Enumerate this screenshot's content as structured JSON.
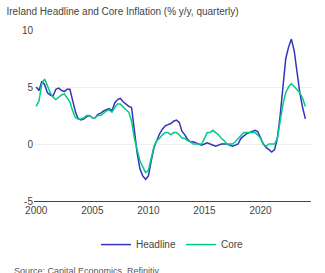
{
  "chart_data": {
    "type": "line",
    "title": "Ireland Headline and Core Inflation (% y/y, quarterly)",
    "annotations": [
      "Source: Capital Economics, Refinitiv"
    ],
    "x": [
      2000,
      2000.25,
      2000.5,
      2000.75,
      2001,
      2001.25,
      2001.5,
      2001.75,
      2002,
      2002.25,
      2002.5,
      2002.75,
      2003,
      2003.25,
      2003.5,
      2003.75,
      2004,
      2004.25,
      2004.5,
      2004.75,
      2005,
      2005.25,
      2005.5,
      2005.75,
      2006,
      2006.25,
      2006.5,
      2006.75,
      2007,
      2007.25,
      2007.5,
      2007.75,
      2008,
      2008.25,
      2008.5,
      2008.75,
      2009,
      2009.25,
      2009.5,
      2009.75,
      2010,
      2010.25,
      2010.5,
      2010.75,
      2011,
      2011.25,
      2011.5,
      2011.75,
      2012,
      2012.25,
      2012.5,
      2012.75,
      2013,
      2013.25,
      2013.5,
      2013.75,
      2014,
      2014.25,
      2014.5,
      2014.75,
      2015,
      2015.25,
      2015.5,
      2015.75,
      2016,
      2016.25,
      2016.5,
      2016.75,
      2017,
      2017.25,
      2017.5,
      2017.75,
      2018,
      2018.25,
      2018.5,
      2018.75,
      2019,
      2019.25,
      2019.5,
      2019.75,
      2020,
      2020.25,
      2020.5,
      2020.75,
      2021,
      2021.25,
      2021.5,
      2021.75,
      2022,
      2022.25,
      2022.5,
      2022.75,
      2023,
      2023.25,
      2023.5,
      2023.75,
      2024
    ],
    "series": [
      {
        "name": "Headline",
        "color": "#3333bb",
        "values": [
          5.0,
          4.7,
          5.5,
          5.2,
          4.5,
          4.3,
          4.2,
          4.8,
          4.9,
          4.7,
          4.6,
          4.8,
          4.8,
          3.8,
          2.8,
          2.2,
          2.1,
          2.2,
          2.4,
          2.5,
          2.3,
          2.3,
          2.6,
          2.7,
          2.9,
          3.0,
          3.1,
          2.9,
          3.6,
          3.9,
          4.0,
          3.7,
          3.5,
          3.3,
          3.2,
          1.2,
          -0.8,
          -2.2,
          -2.8,
          -3.1,
          -2.8,
          -1.5,
          -0.3,
          0.3,
          0.9,
          1.3,
          1.6,
          1.7,
          1.8,
          2.0,
          2.1,
          1.9,
          1.1,
          0.8,
          0.4,
          0.2,
          0.2,
          0.1,
          0.0,
          -0.1,
          0.0,
          0.1,
          0.0,
          -0.1,
          -0.2,
          -0.1,
          0.0,
          0.0,
          0.0,
          -0.1,
          -0.2,
          -0.1,
          0.0,
          0.5,
          0.7,
          0.9,
          1.0,
          1.1,
          1.2,
          1.1,
          0.5,
          0.0,
          -0.3,
          -0.5,
          -0.7,
          -0.5,
          0.5,
          2.5,
          5.0,
          7.5,
          8.5,
          9.2,
          8.2,
          6.2,
          4.5,
          3.2,
          2.2
        ]
      },
      {
        "name": "Core",
        "color": "#00cc88",
        "values": [
          3.3,
          3.8,
          5.3,
          5.7,
          5.1,
          4.5,
          4.1,
          3.9,
          4.1,
          4.3,
          4.4,
          4.1,
          3.7,
          2.9,
          2.3,
          2.2,
          2.2,
          2.3,
          2.5,
          2.5,
          2.3,
          2.3,
          2.5,
          2.5,
          2.7,
          2.9,
          3.0,
          2.8,
          3.2,
          3.5,
          3.5,
          3.2,
          3.0,
          2.8,
          2.0,
          0.5,
          -0.5,
          -1.5,
          -2.0,
          -2.5,
          -2.3,
          -1.2,
          -0.2,
          0.3,
          0.5,
          0.8,
          1.0,
          1.0,
          0.8,
          1.0,
          1.0,
          0.8,
          0.5,
          0.5,
          0.3,
          0.2,
          0.0,
          0.0,
          0.0,
          0.0,
          0.5,
          1.0,
          1.0,
          1.2,
          1.0,
          0.8,
          0.5,
          0.3,
          0.0,
          0.0,
          0.0,
          0.2,
          0.5,
          0.8,
          1.0,
          1.0,
          1.0,
          1.0,
          1.0,
          0.8,
          0.5,
          0.0,
          -0.2,
          0.0,
          0.0,
          0.0,
          0.5,
          2.0,
          3.5,
          4.5,
          5.0,
          5.3,
          5.0,
          4.8,
          4.5,
          4.0,
          3.3
        ]
      }
    ],
    "xlim": [
      1999.8,
      2024.5
    ],
    "xticks": [
      2000,
      2005,
      2010,
      2015,
      2020
    ],
    "ylim": [
      -5,
      10
    ],
    "yticks": [
      -5,
      0,
      5,
      10
    ],
    "grid": true,
    "legend": "bottom"
  }
}
